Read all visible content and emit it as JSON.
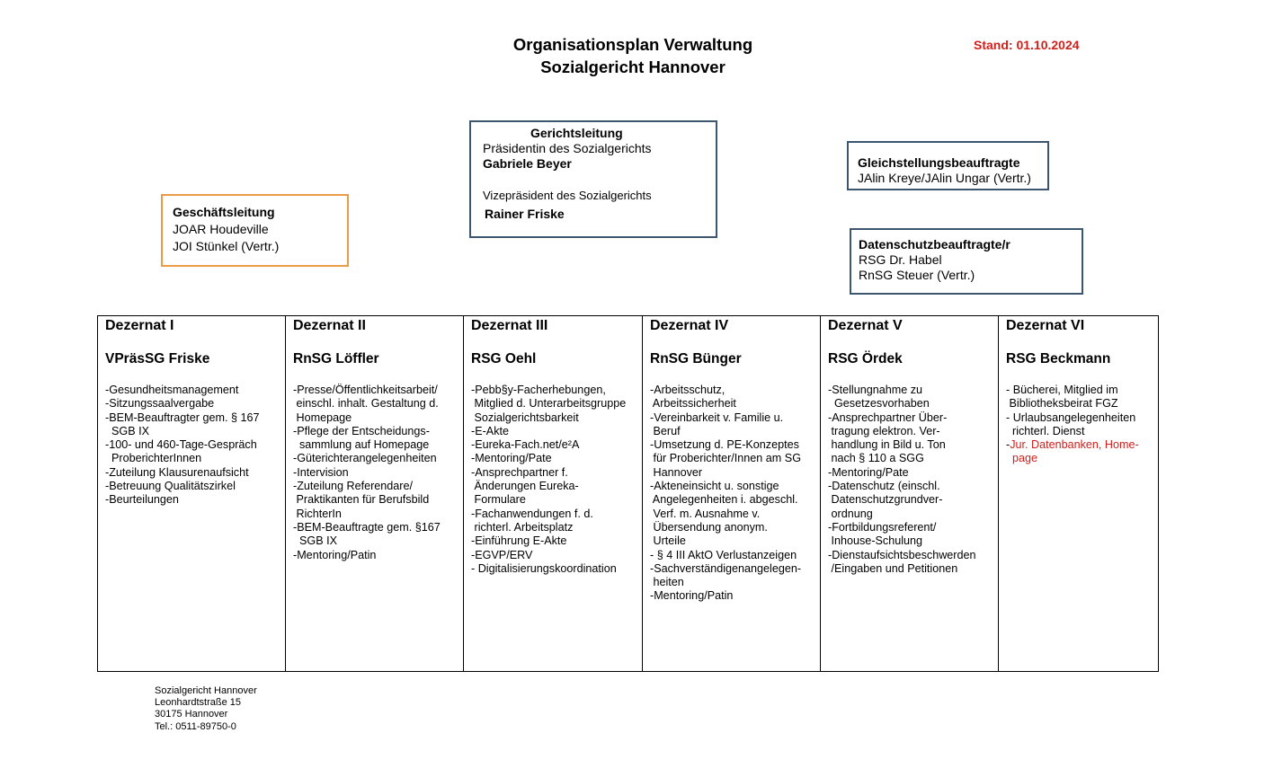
{
  "header": {
    "title_line1": "Organisationsplan Verwaltung",
    "title_line2": "Sozialgericht Hannover",
    "stand": "Stand: 01.10.2024"
  },
  "geschaeftsleitung": {
    "title": "Geschäftsleitung",
    "line1": "JOAR Houdeville",
    "line2": "JOI Stünkel (Vertr.)"
  },
  "gerichtsleitung": {
    "title": "Gerichtsleitung",
    "role1": "Präsidentin des Sozialgerichts",
    "name1": "Gabriele Beyer",
    "role2": "Vizepräsident des Sozialgerichts",
    "name2": "Rainer Friske"
  },
  "gleichstellung": {
    "title": "Gleichstellungsbeauftragte",
    "line1": "JAlin Kreye/JAlin Ungar (Vertr.)"
  },
  "datenschutz": {
    "title": "Datenschutzbeauftragte/r",
    "line1": "RSG Dr. Habel",
    "line2": "RnSG Steuer (Vertr.)"
  },
  "dezernate": [
    {
      "title": "Dezernat I",
      "head": "VPräsSG Friske",
      "lines": [
        "-Gesundheitsmanagement",
        "-Sitzungssaalvergabe",
        "-BEM-Beauftragter gem. § 167",
        "  SGB IX",
        "-100- und 460-Tage-Gespräch",
        "  ProberichterInnen",
        "-Zuteilung Klausurenaufsicht",
        "-Betreuung Qualitätszirkel",
        "-Beurteilungen"
      ]
    },
    {
      "title": "Dezernat II",
      "head": "RnSG Löffler",
      "lines": [
        "-Presse/Öffentlichkeitsarbeit/",
        " einschl. inhalt. Gestaltung d.",
        " Homepage",
        "-Pflege der Entscheidungs-",
        "  sammlung auf Homepage",
        "-Güterichterangelegenheiten",
        "-Intervision",
        "-Zuteilung Referendare/",
        " Praktikanten für Berufsbild",
        " RichterIn",
        "-BEM-Beauftragte gem. §167",
        "  SGB IX",
        "-Mentoring/Patin"
      ]
    },
    {
      "title": "Dezernat III",
      "head": "RSG Oehl",
      "lines": [
        "-Pebb§y-Facherhebungen,",
        " Mitglied d. Unterarbeitsgruppe",
        " Sozialgerichtsbarkeit",
        "-E-Akte",
        "-Eureka-Fach.net/e²A",
        "-Mentoring/Pate",
        "-Ansprechpartner f.",
        " Änderungen Eureka-",
        " Formulare",
        "-Fachanwendungen f. d.",
        " richterl. Arbeitsplatz",
        "-Einführung E-Akte",
        "-EGVP/ERV",
        "- Digitalisierungskoordination"
      ]
    },
    {
      "title": "Dezernat IV",
      "head": "RnSG Bünger",
      "lines": [
        "-Arbeitsschutz,",
        " Arbeitssicherheit",
        "-Vereinbarkeit v. Familie u.",
        " Beruf",
        "-Umsetzung d. PE-Konzeptes",
        " für Proberichter/Innen am SG",
        " Hannover",
        "-Akteneinsicht u. sonstige",
        " Angelegenheiten i. abgeschl.",
        " Verf. m. Ausnahme v.",
        " Übersendung anonym.",
        " Urteile",
        "- § 4 III AktO Verlustanzeigen",
        "-Sachverständigenangelegen-",
        " heiten",
        "-Mentoring/Patin"
      ]
    },
    {
      "title": "Dezernat V",
      "head": "RSG Ördek",
      "lines": [
        "-Stellungnahme zu",
        "  Gesetzesvorhaben",
        "-Ansprechpartner Über-",
        " tragung elektron. Ver-",
        " handlung in Bild u. Ton",
        " nach § 110 a SGG",
        "-Mentoring/Pate",
        "-Datenschutz (einschl.",
        " Datenschutzgrundver-",
        " ordnung",
        "-Fortbildungsreferent/",
        " Inhouse-Schulung",
        "-Dienstaufsichtsbeschwerden",
        " /Eingaben und Petitionen"
      ]
    },
    {
      "title": "Dezernat VI",
      "head": "RSG Beckmann",
      "lines": [
        "- Bücherei, Mitglied im",
        " Bibliotheksbeirat FGZ",
        "- Urlaubsangelegenheiten",
        "  richterl. Dienst"
      ],
      "red_prefix": "-",
      "red_lines": [
        "Jur. Datenbanken, Home-",
        "  page"
      ]
    }
  ],
  "footer": {
    "line1": "Sozialgericht Hannover",
    "line2": "Leonhardtstraße 15",
    "line3": "30175 Hannover",
    "line4": "Tel.: 0511-89750-0"
  },
  "colors": {
    "accent_red": "#d0201c",
    "box_border": "#3b566e",
    "orange_border": "#eb9a45"
  }
}
